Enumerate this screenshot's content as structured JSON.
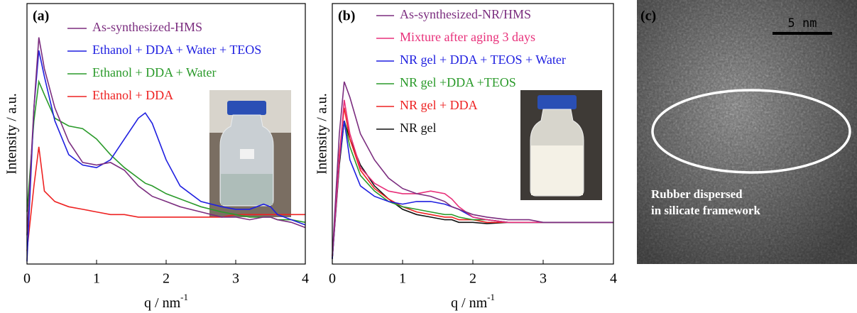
{
  "chart_data": [
    {
      "type": "line",
      "panel": "(a)",
      "ylabel": "Intensity / a.u.",
      "xlabel": {
        "text": "q / nm",
        "sup": "-1"
      },
      "x": [
        0,
        0.1,
        0.17,
        0.25,
        0.4,
        0.6,
        0.8,
        1.0,
        1.2,
        1.4,
        1.6,
        1.7,
        1.8,
        2.0,
        2.2,
        2.5,
        2.8,
        3.0,
        3.2,
        3.4,
        3.5,
        3.6,
        3.8,
        4.0
      ],
      "xlim": [
        0,
        4
      ],
      "xticks": [
        0,
        1,
        2,
        3,
        4
      ],
      "ylim": [
        0,
        100
      ],
      "series": [
        {
          "name": "As-synthesized-HMS",
          "color": "#7b2d7f",
          "values": [
            11,
            60,
            87,
            75,
            60,
            47,
            39,
            38,
            39,
            36,
            30,
            28,
            26,
            24,
            22,
            20,
            18,
            18,
            17,
            18,
            18,
            17,
            16,
            14
          ]
        },
        {
          "name": "Ethanol + DDA + Water + TEOS",
          "color": "#1f1fe0",
          "values": [
            1,
            60,
            82,
            72,
            55,
            42,
            38,
            37,
            40,
            48,
            56,
            58,
            54,
            40,
            30,
            24,
            22,
            21,
            21,
            23,
            22,
            19,
            17,
            15
          ]
        },
        {
          "name": "Ethanol + DDA + Water",
          "color": "#2a9a2a",
          "values": [
            20,
            55,
            70,
            65,
            56,
            53,
            52,
            48,
            42,
            37,
            33,
            31,
            30,
            27,
            25,
            22,
            20,
            19,
            18,
            18,
            18,
            17,
            17,
            16
          ]
        },
        {
          "name": "Ethanol + DDA",
          "color": "#ee2222",
          "values": [
            5,
            30,
            45,
            28,
            24,
            22,
            21,
            20,
            19,
            19,
            18,
            18,
            18,
            18,
            18,
            18,
            18,
            19,
            19,
            19,
            19,
            19,
            19,
            19
          ]
        }
      ]
    },
    {
      "type": "line",
      "panel": "(b)",
      "ylabel": "Intensity / a.u.",
      "xlabel": {
        "text": "q / nm",
        "sup": "-1"
      },
      "x": [
        0,
        0.1,
        0.17,
        0.25,
        0.4,
        0.6,
        0.8,
        1.0,
        1.2,
        1.4,
        1.6,
        1.7,
        1.8,
        2.0,
        2.2,
        2.5,
        2.8,
        3.0,
        3.2,
        3.4,
        3.5,
        3.6,
        3.8,
        4.0
      ],
      "xlim": [
        0,
        4
      ],
      "xticks": [
        0,
        1,
        2,
        3,
        4
      ],
      "ylim": [
        0,
        100
      ],
      "series": [
        {
          "name": "As-synthesized-NR/HMS",
          "color": "#7b2d7f",
          "values": [
            3,
            50,
            70,
            64,
            50,
            40,
            33,
            29,
            27,
            26,
            24,
            22,
            21,
            19,
            18,
            17,
            17,
            16,
            16,
            16,
            16,
            16,
            16,
            16
          ]
        },
        {
          "name": "Mixture after aging 3 days",
          "color": "#e8307a",
          "values": [
            3,
            40,
            63,
            50,
            37,
            31,
            28,
            27,
            27,
            28,
            27,
            25,
            22,
            18,
            17,
            16,
            16,
            16,
            16,
            16,
            16,
            16,
            16,
            16
          ]
        },
        {
          "name": "NR gel + DDA + TEOS + Water",
          "color": "#1f1fe0",
          "values": [
            2,
            40,
            55,
            40,
            30,
            26,
            24,
            23,
            24,
            24,
            23,
            22,
            21,
            18,
            17,
            16,
            16,
            16,
            16,
            16,
            16,
            16,
            16,
            16
          ]
        },
        {
          "name": "NR gel +DDA +TEOS",
          "color": "#2a9a2a",
          "values": [
            2,
            40,
            55,
            45,
            34,
            28,
            24,
            22,
            21,
            20,
            19,
            19,
            18,
            17,
            17,
            16,
            16,
            16,
            16,
            16,
            16,
            16,
            16,
            16
          ]
        },
        {
          "name": "NR gel + DDA",
          "color": "#ee2222",
          "values": [
            2,
            42,
            60,
            48,
            36,
            29,
            25,
            22,
            20,
            19,
            18,
            18,
            17,
            17,
            16,
            16,
            16,
            16,
            16,
            16,
            16,
            16,
            16,
            16
          ]
        },
        {
          "name": "NR gel",
          "color": "#111111",
          "values": [
            2,
            38,
            55,
            48,
            38,
            30,
            25,
            21,
            19,
            18,
            17,
            17,
            16,
            16,
            15.5,
            16,
            16,
            16,
            16,
            16,
            16,
            16,
            16,
            16
          ]
        }
      ]
    }
  ],
  "image_panel": {
    "label": "(c)",
    "scale_bar": "5 nm",
    "caption": [
      "Rubber dispersed",
      "in silicate framework"
    ]
  }
}
